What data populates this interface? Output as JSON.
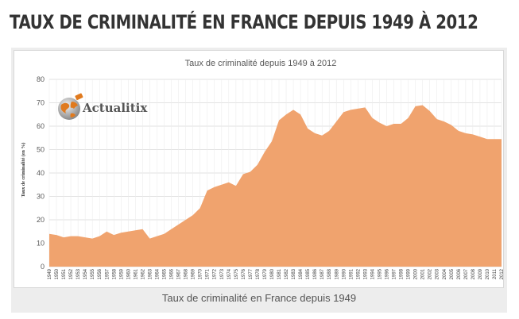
{
  "page": {
    "title": "TAUX DE CRIMINALITÉ EN FRANCE DEPUIS 1949 À 2012",
    "caption": "Taux de criminalité en France depuis 1949"
  },
  "logo": {
    "text": "Actualitix",
    "icon": "globe-icon"
  },
  "colors": {
    "area": "#f0a36e",
    "grid": "#d9d9d9",
    "text": "#595959"
  },
  "chart_data": {
    "type": "area",
    "title": "Taux de criminalité depuis 1949 à 2012",
    "xlabel": "",
    "ylabel": "Taux de criminalité (en %)",
    "ylim": [
      0,
      80
    ],
    "yticks": [
      0,
      10,
      20,
      30,
      40,
      50,
      60,
      70,
      80
    ],
    "grid": true,
    "x": [
      "1949",
      "1950",
      "1951",
      "1952",
      "1953",
      "1954",
      "1955",
      "1956",
      "1957",
      "1958",
      "1959",
      "1960",
      "1961",
      "1962",
      "1963",
      "1964",
      "1965",
      "1966",
      "1967",
      "1968",
      "1969",
      "1970",
      "1971",
      "1972",
      "1973",
      "1974",
      "1975",
      "1976",
      "1977",
      "1978",
      "1979",
      "1980",
      "1981",
      "1982",
      "1983",
      "1984",
      "1985",
      "1986",
      "1987",
      "1988",
      "1989",
      "1990",
      "1991",
      "1992",
      "1993",
      "1994",
      "1995",
      "1996",
      "1997",
      "1998",
      "1999",
      "2000",
      "2001",
      "2002",
      "2003",
      "2004",
      "2005",
      "2006",
      "2007",
      "2008",
      "2009",
      "2010",
      "2011",
      "2012"
    ],
    "values": [
      14,
      13.5,
      12.5,
      13,
      13,
      12.5,
      12,
      13,
      15,
      13.5,
      14.5,
      15,
      15.5,
      16,
      12,
      13,
      14,
      16,
      18,
      20,
      22,
      25,
      32.5,
      34,
      35,
      36,
      34.5,
      39.5,
      40.5,
      43.5,
      49,
      53.5,
      62.5,
      65,
      67,
      65,
      59,
      57,
      56,
      58,
      62,
      66,
      67,
      67.5,
      68,
      63.5,
      61.5,
      60,
      61,
      61,
      63.5,
      68.5,
      69,
      66.5,
      63,
      62,
      60.5,
      58,
      57,
      56.5,
      55.5,
      54.5,
      54.5,
      54.5
    ]
  }
}
